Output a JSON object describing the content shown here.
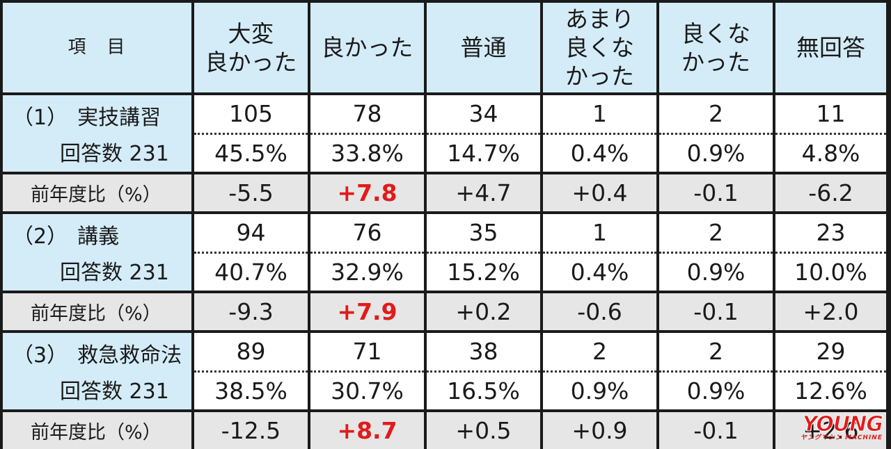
{
  "header": {
    "item": "項　目",
    "columns": [
      [
        "大変",
        "良かった"
      ],
      [
        "良かった"
      ],
      [
        "普通"
      ],
      [
        "あまり",
        "良くな",
        "かった"
      ],
      [
        "良くな",
        "かった"
      ],
      [
        "無回答"
      ]
    ]
  },
  "sections": [
    {
      "num": "（1）",
      "name": "実技講習",
      "count_label": "回答数 231",
      "counts": [
        "105",
        "78",
        "34",
        "1",
        "2",
        "11"
      ],
      "percents": [
        "45.5%",
        "33.8%",
        "14.7%",
        "0.4%",
        "0.9%",
        "4.8%"
      ],
      "diff_label": "前年度比（%）",
      "diffs": [
        "-5.5",
        "+7.8",
        "+4.7",
        "+0.4",
        "-0.1",
        "-6.2"
      ]
    },
    {
      "num": "（2）",
      "name": "講義",
      "count_label": "回答数 231",
      "counts": [
        "94",
        "76",
        "35",
        "1",
        "2",
        "23"
      ],
      "percents": [
        "40.7%",
        "32.9%",
        "15.2%",
        "0.4%",
        "0.9%",
        "10.0%"
      ],
      "diff_label": "前年度比（%）",
      "diffs": [
        "-9.3",
        "+7.9",
        "+0.2",
        "-0.6",
        "-0.1",
        "+2.0"
      ]
    },
    {
      "num": "（3）",
      "name": "救急救命法",
      "count_label": "回答数 231",
      "counts": [
        "89",
        "71",
        "38",
        "2",
        "2",
        "29"
      ],
      "percents": [
        "38.5%",
        "30.7%",
        "16.5%",
        "0.9%",
        "0.9%",
        "12.6%"
      ],
      "diff_label": "前年度比（%）",
      "diffs": [
        "-12.5",
        "+8.7",
        "+0.5",
        "+0.9",
        "-0.1",
        "+2.6"
      ]
    }
  ],
  "highlight_color": "#e11b1b",
  "watermark": {
    "main": "YOUNG",
    "sub": "ヤングマシン MACHINE"
  }
}
